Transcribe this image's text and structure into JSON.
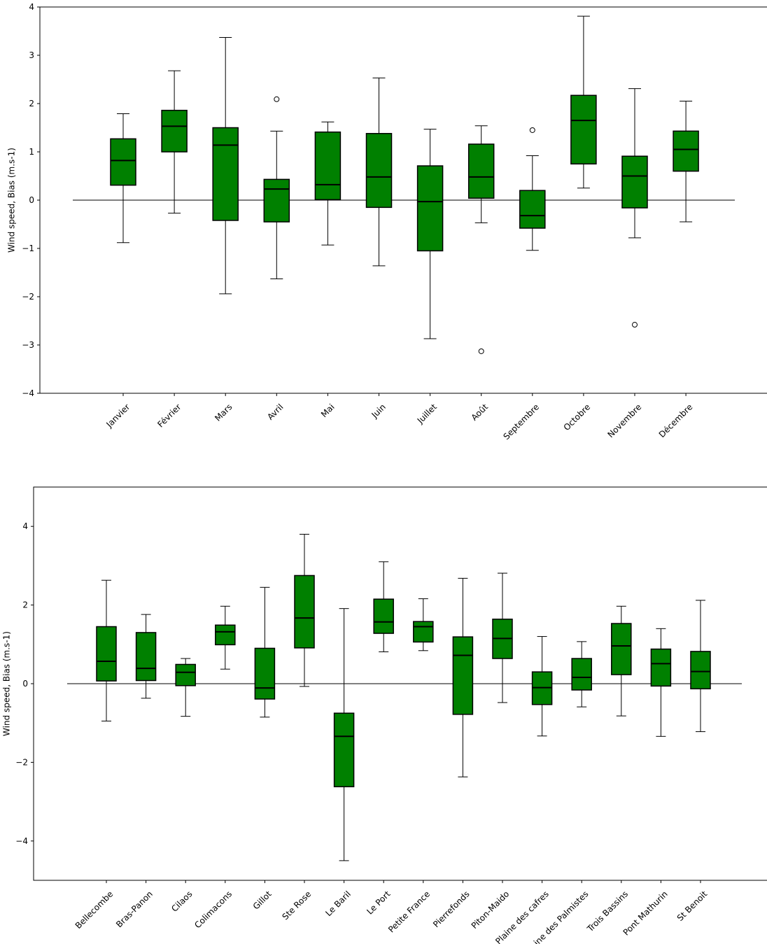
{
  "colors": {
    "box_fill": "#008000",
    "box_edge": "#000000",
    "axis": "#000000",
    "zero_line": "#000000"
  },
  "chart_data": [
    {
      "type": "box",
      "ylabel": "Wind speed, Bias (m.s-1)",
      "ylim": [
        -4,
        4
      ],
      "yticks": [
        -4,
        -3,
        -2,
        -1,
        0,
        1,
        2,
        3,
        4
      ],
      "zero_line": 0,
      "grid": false,
      "categories": [
        "Janvier",
        "Février",
        "Mars",
        "Avril",
        "Mai",
        "Juin",
        "Juillet",
        "Août",
        "Septembre",
        "Octobre",
        "Novembre",
        "Décembre"
      ],
      "boxes": [
        {
          "whisker_low": -0.88,
          "q1": 0.31,
          "median": 0.82,
          "q3": 1.27,
          "whisker_high": 1.79,
          "outliers": []
        },
        {
          "whisker_low": -0.27,
          "q1": 1.0,
          "median": 1.53,
          "q3": 1.86,
          "whisker_high": 2.68,
          "outliers": []
        },
        {
          "whisker_low": -1.94,
          "q1": -0.42,
          "median": 1.14,
          "q3": 1.5,
          "whisker_high": 3.37,
          "outliers": []
        },
        {
          "whisker_low": -1.63,
          "q1": -0.45,
          "median": 0.23,
          "q3": 0.43,
          "whisker_high": 1.43,
          "outliers": [
            2.09
          ]
        },
        {
          "whisker_low": -0.93,
          "q1": 0.01,
          "median": 0.32,
          "q3": 1.41,
          "whisker_high": 1.62,
          "outliers": []
        },
        {
          "whisker_low": -1.36,
          "q1": -0.15,
          "median": 0.48,
          "q3": 1.38,
          "whisker_high": 2.53,
          "outliers": []
        },
        {
          "whisker_low": -2.87,
          "q1": -1.05,
          "median": -0.03,
          "q3": 0.71,
          "whisker_high": 1.47,
          "outliers": []
        },
        {
          "whisker_low": -0.47,
          "q1": 0.04,
          "median": 0.48,
          "q3": 1.16,
          "whisker_high": 1.54,
          "outliers": [
            -3.13
          ]
        },
        {
          "whisker_low": -1.04,
          "q1": -0.58,
          "median": -0.32,
          "q3": 0.2,
          "whisker_high": 0.92,
          "outliers": [
            1.45
          ]
        },
        {
          "whisker_low": 0.25,
          "q1": 0.75,
          "median": 1.65,
          "q3": 2.17,
          "whisker_high": 3.81,
          "outliers": []
        },
        {
          "whisker_low": -0.78,
          "q1": -0.16,
          "median": 0.5,
          "q3": 0.91,
          "whisker_high": 2.31,
          "outliers": [
            -2.58
          ]
        },
        {
          "whisker_low": -0.45,
          "q1": 0.6,
          "median": 1.05,
          "q3": 1.43,
          "whisker_high": 2.05,
          "outliers": []
        }
      ]
    },
    {
      "type": "box",
      "ylabel": "Wind speed, Bias (m.s-1)",
      "ylim": [
        -5,
        5
      ],
      "yticks": [
        -4,
        -2,
        0,
        2,
        4
      ],
      "zero_line": 0,
      "grid": false,
      "categories": [
        "Bellecombe",
        "Bras-Panon",
        "Cilaos",
        "Colimacons",
        "Gillot",
        "Ste Rose",
        "Le Baril",
        "Le Port",
        "Petite France",
        "Pierrefonds",
        "Piton-Maido",
        "Plaine des cafres",
        "Plaine des Palmistes",
        "Trois Bassins",
        "Pont Mathurin",
        "St Benoit"
      ],
      "boxes": [
        {
          "whisker_low": -0.95,
          "q1": 0.07,
          "median": 0.57,
          "q3": 1.45,
          "whisker_high": 2.63,
          "outliers": []
        },
        {
          "whisker_low": -0.37,
          "q1": 0.08,
          "median": 0.39,
          "q3": 1.3,
          "whisker_high": 1.76,
          "outliers": []
        },
        {
          "whisker_low": -0.83,
          "q1": -0.05,
          "median": 0.29,
          "q3": 0.49,
          "whisker_high": 0.64,
          "outliers": []
        },
        {
          "whisker_low": 0.37,
          "q1": 0.99,
          "median": 1.32,
          "q3": 1.49,
          "whisker_high": 1.97,
          "outliers": []
        },
        {
          "whisker_low": -0.85,
          "q1": -0.39,
          "median": -0.11,
          "q3": 0.9,
          "whisker_high": 2.45,
          "outliers": []
        },
        {
          "whisker_low": -0.07,
          "q1": 0.91,
          "median": 1.67,
          "q3": 2.75,
          "whisker_high": 3.8,
          "outliers": []
        },
        {
          "whisker_low": -4.5,
          "q1": -2.62,
          "median": -1.34,
          "q3": -0.75,
          "whisker_high": 1.91,
          "outliers": []
        },
        {
          "whisker_low": 0.81,
          "q1": 1.28,
          "median": 1.57,
          "q3": 2.15,
          "whisker_high": 3.1,
          "outliers": []
        },
        {
          "whisker_low": 0.84,
          "q1": 1.06,
          "median": 1.45,
          "q3": 1.58,
          "whisker_high": 2.16,
          "outliers": []
        },
        {
          "whisker_low": -2.37,
          "q1": -0.78,
          "median": 0.72,
          "q3": 1.19,
          "whisker_high": 2.68,
          "outliers": []
        },
        {
          "whisker_low": -0.48,
          "q1": 0.64,
          "median": 1.15,
          "q3": 1.64,
          "whisker_high": 2.81,
          "outliers": []
        },
        {
          "whisker_low": -1.33,
          "q1": -0.53,
          "median": -0.1,
          "q3": 0.3,
          "whisker_high": 1.2,
          "outliers": []
        },
        {
          "whisker_low": -0.59,
          "q1": -0.16,
          "median": 0.16,
          "q3": 0.64,
          "whisker_high": 1.07,
          "outliers": []
        },
        {
          "whisker_low": -0.82,
          "q1": 0.23,
          "median": 0.96,
          "q3": 1.53,
          "whisker_high": 1.97,
          "outliers": []
        },
        {
          "whisker_low": -1.34,
          "q1": -0.06,
          "median": 0.51,
          "q3": 0.88,
          "whisker_high": 1.4,
          "outliers": []
        },
        {
          "whisker_low": -1.22,
          "q1": -0.13,
          "median": 0.31,
          "q3": 0.82,
          "whisker_high": 2.12,
          "outliers": []
        }
      ]
    }
  ]
}
